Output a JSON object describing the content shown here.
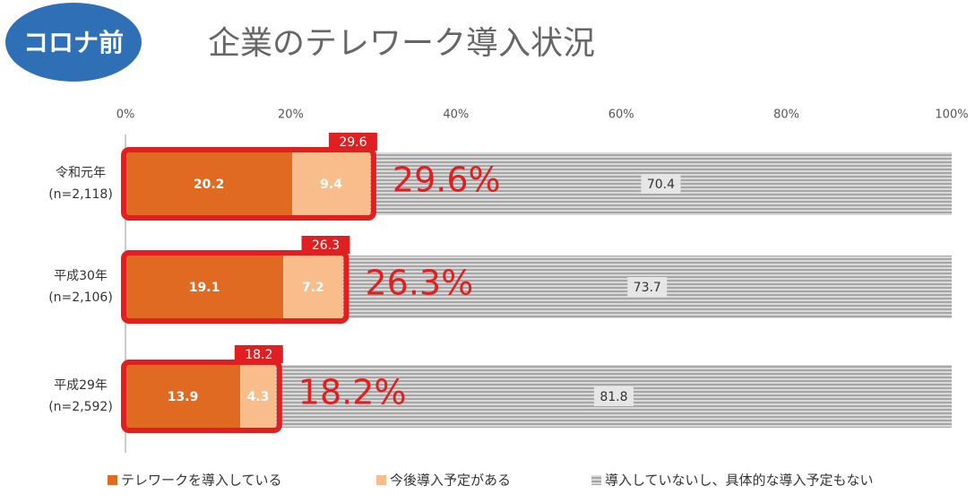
{
  "chart_data": {
    "type": "stacked-bar-horizontal",
    "badge": "コロナ前",
    "title": "企業のテレワーク導入状況",
    "categories": [
      "令和元年",
      "平成30年",
      "平成29年"
    ],
    "sample_sizes": [
      "(n=2,118)",
      "(n=2,106)",
      "(n=2,592)"
    ],
    "series": [
      {
        "name": "テレワークを導入している",
        "color": "#e06a22",
        "values": [
          20.2,
          19.1,
          13.9
        ]
      },
      {
        "name": "今後導入予定がある",
        "color": "#f8bd8a",
        "values": [
          9.4,
          7.2,
          4.3
        ]
      },
      {
        "name": "導入していないし、具体的な導入予定もない",
        "color": "#bdbdbd",
        "values": [
          70.4,
          73.7,
          81.8
        ]
      }
    ],
    "totals": {
      "values": [
        29.6,
        26.3,
        18.2
      ],
      "value_labels": [
        "29.6%",
        "26.3%",
        "18.2%"
      ],
      "color": "#e02020"
    },
    "xlim": [
      0,
      100
    ],
    "xticks": [
      {
        "value": 0,
        "label": "0%"
      },
      {
        "value": 20,
        "label": "20%"
      },
      {
        "value": 40,
        "label": "40%"
      },
      {
        "value": 60,
        "label": "60%"
      },
      {
        "value": 80,
        "label": "80%"
      },
      {
        "value": 100,
        "label": "100%"
      }
    ]
  }
}
